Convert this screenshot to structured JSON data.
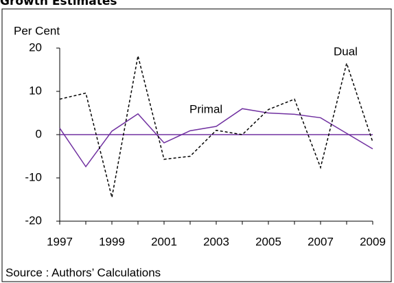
{
  "chart_data": {
    "type": "line",
    "title": "Growth Estimates",
    "y_label": "Per Cent",
    "source": "Source : Authors’ Calculations",
    "x": [
      1997,
      1998,
      1999,
      2000,
      2001,
      2002,
      2003,
      2004,
      2005,
      2006,
      2007,
      2008,
      2009
    ],
    "series": [
      {
        "name": "Primal",
        "color": "#7030a0",
        "dash": false,
        "values": [
          1.5,
          -7.4,
          0.8,
          4.8,
          -1.9,
          0.9,
          1.9,
          6,
          5,
          4.7,
          3.9,
          0.3,
          -3.3
        ]
      },
      {
        "name": "Dual",
        "color": "#000000",
        "dash": true,
        "values": [
          8.2,
          9.6,
          -14.5,
          18.2,
          -5.7,
          -5,
          1,
          0,
          5.8,
          8.2,
          -7.6,
          16.5,
          -1.7
        ]
      }
    ],
    "xlim": [
      1997,
      2009
    ],
    "xticks": [
      1997,
      1999,
      2001,
      2003,
      2005,
      2007,
      2009
    ],
    "ylim": [
      -20,
      20
    ],
    "yticks": [
      -20,
      -10,
      0,
      10,
      20
    ],
    "zero_line_color": "#7030a0"
  }
}
